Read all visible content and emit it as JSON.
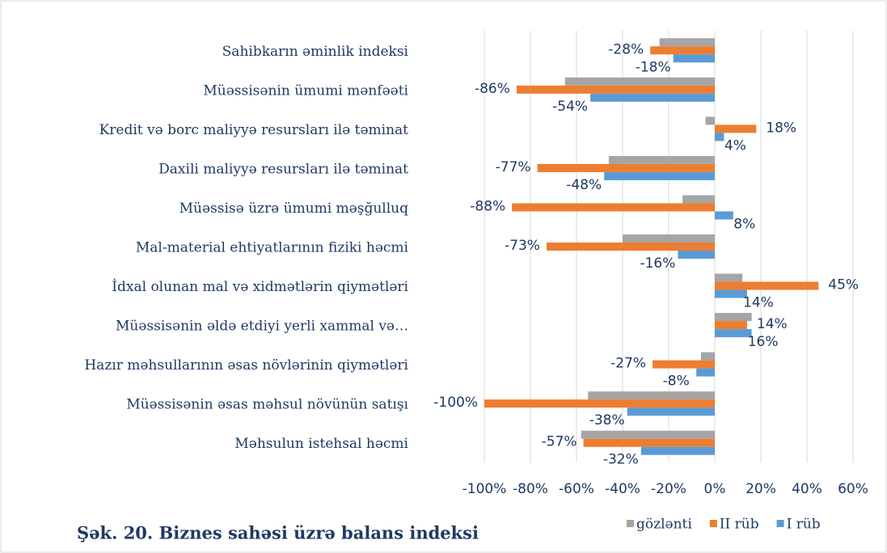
{
  "chart_data": {
    "type": "bar",
    "orientation": "horizontal",
    "title": "Şək. 20. Biznes sahəsi üzrə balans indeksi",
    "categories": [
      "Sahibkarın əminlik indeksi",
      "Müəssisənin ümumi mənfəəti",
      "Kredit və borc maliyyə resursları ilə təminat",
      "Daxili maliyyə resursları ilə təminat",
      "Müəssisə üzrə ümumi məşğulluq",
      "Mal-material ehtiyatlarının fiziki həcmi",
      "İdxal olunan mal və xidmətlərin qiymətləri",
      "Müəssisənin əldə etdiyi yerli xammal və…",
      "Hazır məhsullarının  əsas növlərinin qiymətləri",
      "Müəssisənin əsas məhsul növünün satışı",
      "Məhsulun istehsal həcmi"
    ],
    "series": [
      {
        "name": "gözlənti",
        "color": "#a5a5a5",
        "values": [
          -24,
          -65,
          -4,
          -46,
          -14,
          -40,
          12,
          16,
          -6,
          -55,
          -58
        ]
      },
      {
        "name": "II rüb",
        "color": "#ed7d31",
        "values": [
          -28,
          -86,
          18,
          -77,
          -88,
          -73,
          45,
          14,
          -27,
          -100,
          -57
        ],
        "value_labels": [
          "-28%",
          "-86%",
          "18%",
          "-77%",
          "-88%",
          "-73%",
          "45%",
          "14%",
          "-27%",
          "-100%",
          "-57%"
        ]
      },
      {
        "name": "I rüb",
        "color": "#5b9bd5",
        "values": [
          -18,
          -54,
          4,
          -48,
          8,
          -16,
          14,
          16,
          -8,
          -38,
          -32
        ],
        "value_labels": [
          "-18%",
          "-54%",
          "4%",
          "-48%",
          "8%",
          "-16%",
          "14%",
          "16%",
          "-8%",
          "-38%",
          "-32%"
        ]
      }
    ],
    "xlim": [
      -100,
      60
    ],
    "xticks": [
      {
        "value": -100,
        "label": "-100%"
      },
      {
        "value": -80,
        "label": "-80%"
      },
      {
        "value": -60,
        "label": "-60%"
      },
      {
        "value": -40,
        "label": "-40%"
      },
      {
        "value": -20,
        "label": "-20%"
      },
      {
        "value": 0,
        "label": "0%"
      },
      {
        "value": 20,
        "label": "20%"
      },
      {
        "value": 40,
        "label": "40%"
      },
      {
        "value": 60,
        "label": "60%"
      }
    ],
    "grid": true,
    "legend": "bottom-right"
  }
}
